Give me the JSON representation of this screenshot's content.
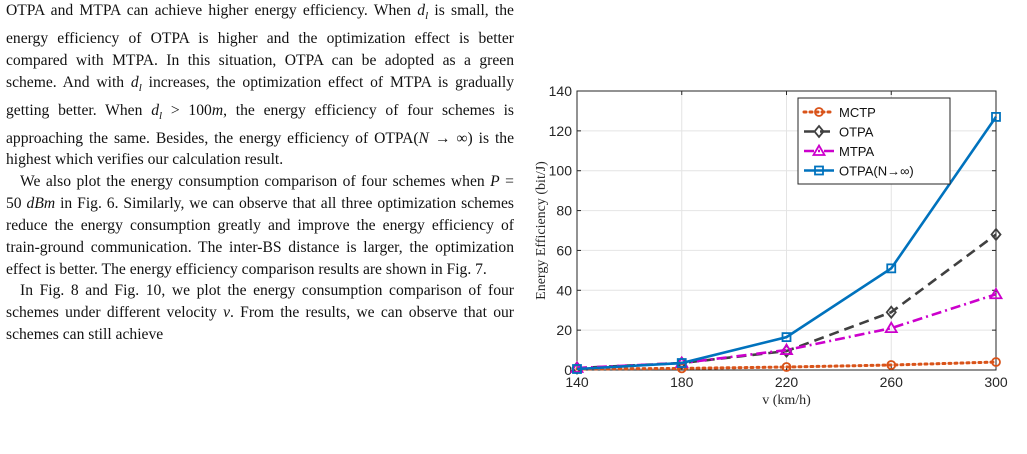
{
  "paper": {
    "paragraphs": [
      {
        "indent": false,
        "segments": [
          {
            "t": "OTPA and MTPA can achieve higher energy efficiency. When "
          },
          {
            "t": "d",
            "i": true
          },
          {
            "t": "l",
            "sub": true
          },
          {
            "t": " is small, the energy efficiency of OTPA is higher and the optimization effect is better compared with MTPA. In this situation, OTPA can be adopted as a green scheme. And with "
          },
          {
            "t": "d",
            "i": true
          },
          {
            "t": "l",
            "sub": true
          },
          {
            "t": " increases, the optimization effect of MTPA is gradually getting better. When "
          },
          {
            "t": "d",
            "i": true
          },
          {
            "t": "l",
            "sub": true
          },
          {
            "t": " > 100"
          },
          {
            "t": "m",
            "i": true
          },
          {
            "t": ", the energy efficiency of four schemes is approaching the same. Besides, the energy efficiency of OTPA("
          },
          {
            "t": "N",
            "i": true
          },
          {
            "t": " → ∞) is the highest which verifies our calculation result."
          }
        ]
      },
      {
        "indent": true,
        "segments": [
          {
            "t": "We also plot the energy consumption comparison of four schemes when "
          },
          {
            "t": "P",
            "i": true
          },
          {
            "t": " = 50 "
          },
          {
            "t": "dBm",
            "i": true
          },
          {
            "t": " in Fig. 6. Similarly, we can observe that all three optimization schemes reduce the energy consumption greatly and improve the energy efficiency of train-ground communication. The inter-BS distance is larger, the optimization effect is better. The energy efficiency comparison results are shown in Fig. 7."
          }
        ]
      },
      {
        "indent": true,
        "segments": [
          {
            "t": "In Fig. 8 and Fig. 10, we plot the energy consumption comparison of four schemes under different velocity "
          },
          {
            "t": "v",
            "i": true
          },
          {
            "t": ". From the results, we can observe that our schemes can still achieve"
          }
        ]
      }
    ]
  },
  "chart_data": {
    "type": "line",
    "title": "",
    "xlabel": "v (km/h)",
    "ylabel": "Energy Efficiency (bit/J)",
    "x": [
      140,
      180,
      220,
      260,
      300
    ],
    "xlim": [
      140,
      300
    ],
    "ylim": [
      0,
      140
    ],
    "xticks": [
      140,
      180,
      220,
      260,
      300
    ],
    "yticks": [
      0,
      20,
      40,
      60,
      80,
      100,
      120,
      140
    ],
    "grid": true,
    "legend_position": "top-right",
    "series": [
      {
        "name": "MCTP",
        "values": [
          0.5,
          0.8,
          1.5,
          2.5,
          4
        ],
        "color": "#d95319",
        "dash": "dotted",
        "marker": "circle"
      },
      {
        "name": "OTPA",
        "values": [
          1,
          3.5,
          9.5,
          29,
          68
        ],
        "color": "#404040",
        "dash": "dashed",
        "marker": "diamond"
      },
      {
        "name": "MTPA",
        "values": [
          1,
          3.5,
          10,
          21,
          38
        ],
        "color": "#cc00cc",
        "dash": "dashdot",
        "marker": "triangle"
      },
      {
        "name": "OTPA(N→∞)",
        "values": [
          0.5,
          3.5,
          16.5,
          51,
          127
        ],
        "color": "#0072bd",
        "dash": "solid",
        "marker": "square"
      }
    ]
  }
}
